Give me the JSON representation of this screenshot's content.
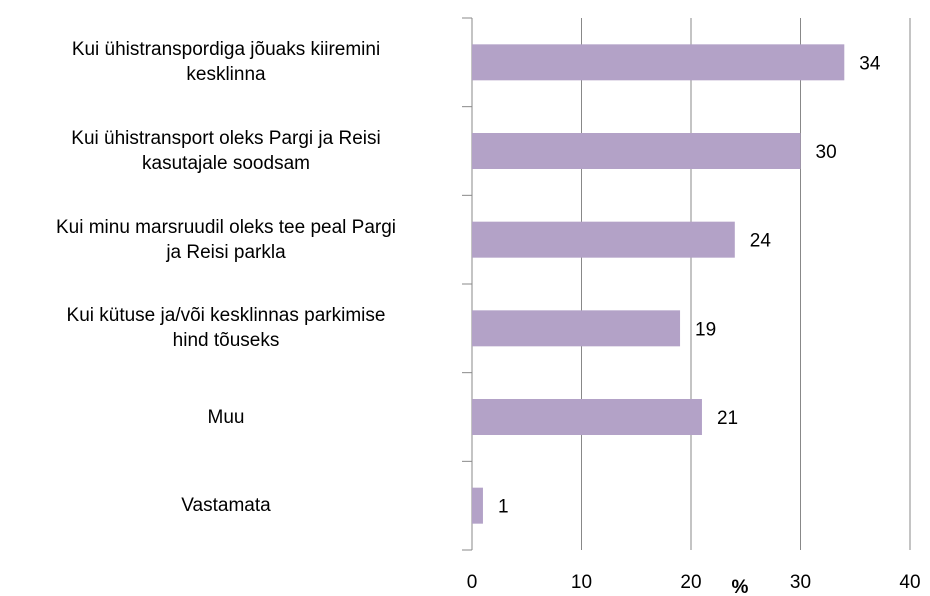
{
  "chart_data": {
    "type": "bar",
    "orientation": "horizontal",
    "categories": [
      "Kui ühistranspordiga jõuaks kiiremini\nkesklinna",
      "Kui ühistransport oleks Pargi ja Reisi\nkasutajale soodsam",
      "Kui minu marsruudil oleks tee peal Pargi\nja Reisi parkla",
      "Kui kütuse ja/või kesklinnas parkimise\nhind tõuseks",
      "Muu",
      "Vastamata"
    ],
    "values": [
      34,
      30,
      24,
      19,
      21,
      1
    ],
    "color": "#b3a2c7",
    "xlim": [
      0,
      40
    ],
    "xticks": [
      0,
      10,
      20,
      30,
      40
    ],
    "xlabel": "%",
    "grid": true
  }
}
